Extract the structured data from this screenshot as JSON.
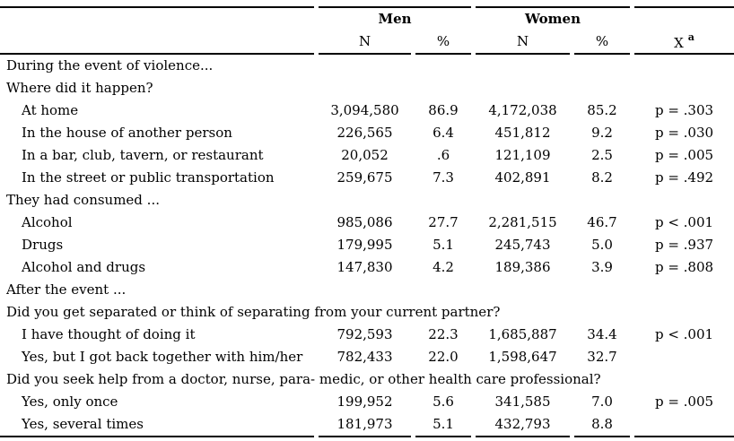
{
  "table": {
    "header": {
      "men_label": "Men",
      "women_label": "Women",
      "men_n": "N",
      "men_pct": "%",
      "women_n": "N",
      "women_pct": "%",
      "stat_label": "X",
      "stat_footnote": "a"
    },
    "rows": [
      {
        "type": "section",
        "label": "During the event of violence..."
      },
      {
        "type": "section",
        "label": "Where did it happen?"
      },
      {
        "type": "item",
        "label": "At home",
        "men_n": "3,094,580",
        "men_pct": "86.9",
        "women_n": "4,172,038",
        "women_pct": "85.2",
        "p": "p = .303"
      },
      {
        "type": "item",
        "label": "In the house of another person",
        "men_n": "226,565",
        "men_pct": "6.4",
        "women_n": "451,812",
        "women_pct": "9.2",
        "p": "p = .030"
      },
      {
        "type": "item",
        "label": "In a bar, club, tavern, or restaurant",
        "men_n": "20,052",
        "men_pct": ".6",
        "women_n": "121,109",
        "women_pct": "2.5",
        "p": "p = .005"
      },
      {
        "type": "item",
        "label": "In the street or public transportation",
        "men_n": "259,675",
        "men_pct": "7.3",
        "women_n": "402,891",
        "women_pct": "8.2",
        "p": "p = .492"
      },
      {
        "type": "section",
        "label": "They had consumed ..."
      },
      {
        "type": "item",
        "label": "Alcohol",
        "men_n": "985,086",
        "men_pct": "27.7",
        "women_n": "2,281,515",
        "women_pct": "46.7",
        "p": "p < .001"
      },
      {
        "type": "item",
        "label": "Drugs",
        "men_n": "179,995",
        "men_pct": "5.1",
        "women_n": "245,743",
        "women_pct": "5.0",
        "p": "p = .937"
      },
      {
        "type": "item",
        "label": "Alcohol and drugs",
        "men_n": "147,830",
        "men_pct": "4.2",
        "women_n": "189,386",
        "women_pct": "3.9",
        "p": "p = .808"
      },
      {
        "type": "section",
        "label": "After the event ..."
      },
      {
        "type": "section",
        "label": "Did you get separated or think of separating from your current partner?"
      },
      {
        "type": "item",
        "label": "I have thought of doing it",
        "men_n": "792,593",
        "men_pct": "22.3",
        "women_n": "1,685,887",
        "women_pct": "34.4",
        "p": "p < .001"
      },
      {
        "type": "item",
        "label": "Yes, but I got back together with him/her",
        "men_n": "782,433",
        "men_pct": "22.0",
        "women_n": "1,598,647",
        "women_pct": "32.7",
        "p": ""
      },
      {
        "type": "section",
        "label": "Did you seek help from a doctor, nurse, para- medic, or other health care professional?"
      },
      {
        "type": "item",
        "label": "Yes, only once",
        "men_n": "199,952",
        "men_pct": "5.6",
        "women_n": "341,585",
        "women_pct": "7.0",
        "p": "p = .005"
      },
      {
        "type": "item",
        "label": "Yes, several times",
        "men_n": "181,973",
        "men_pct": "5.1",
        "women_n": "432,793",
        "women_pct": "8.8",
        "p": ""
      }
    ]
  }
}
